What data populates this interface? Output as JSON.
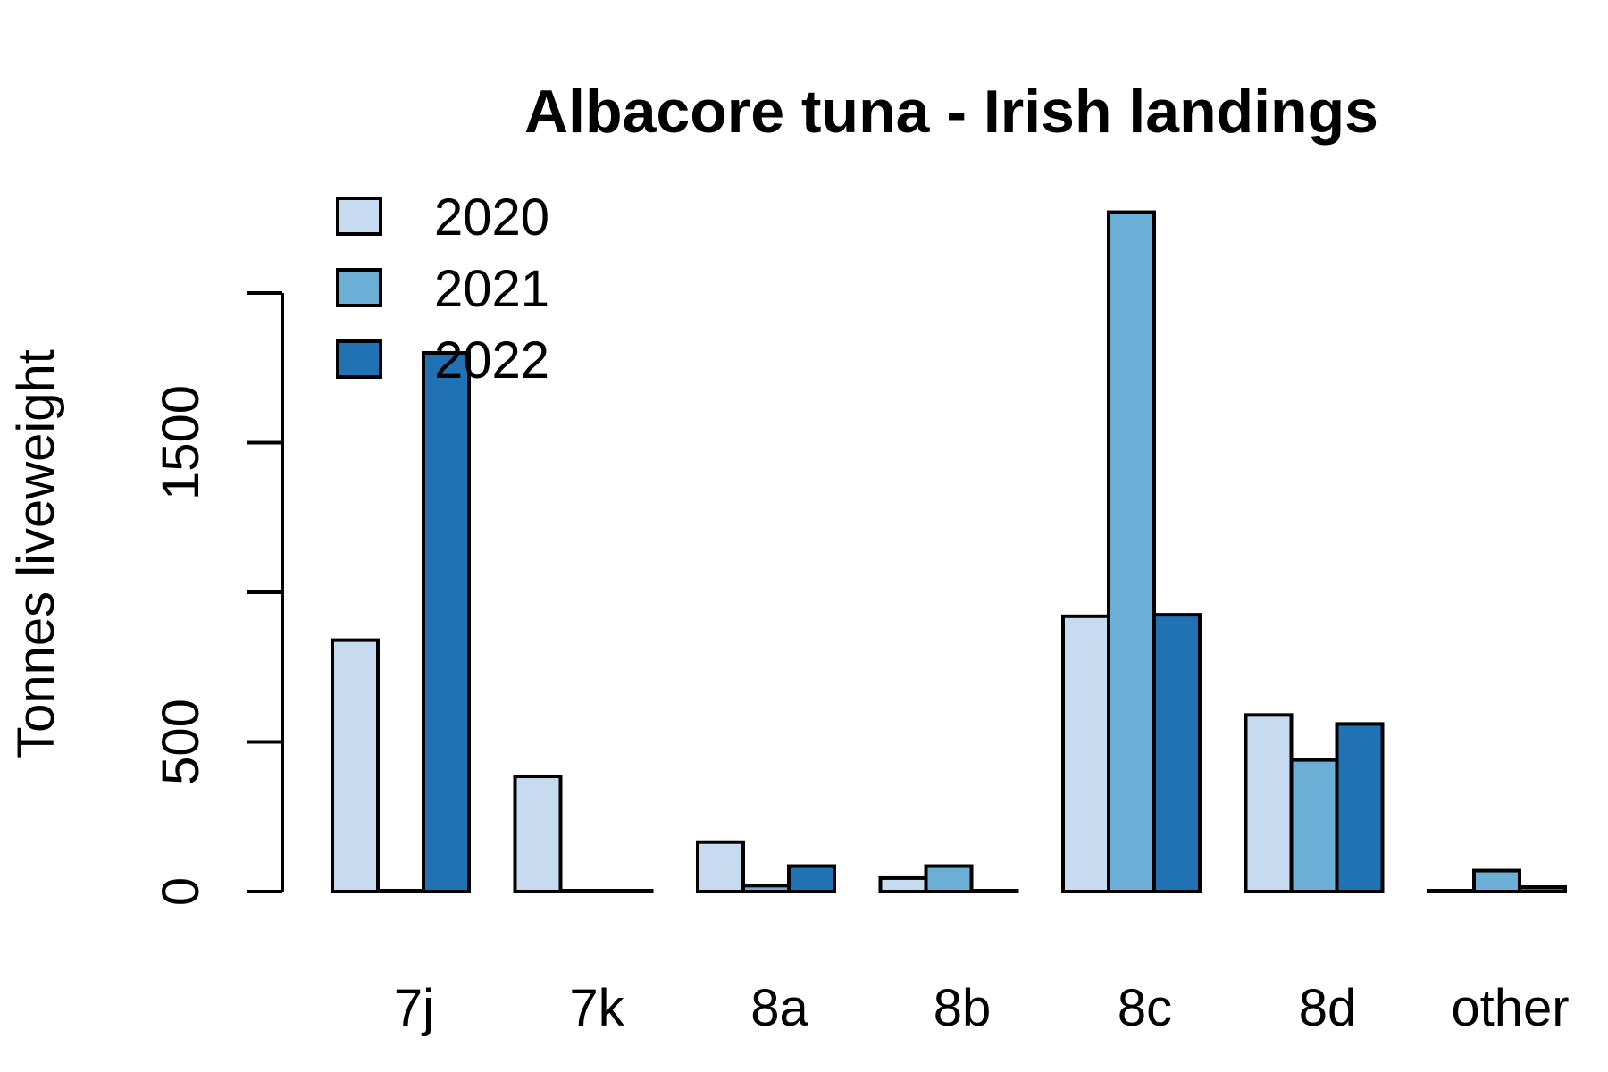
{
  "chart_data": {
    "type": "bar",
    "title": "Albacore tuna - Irish landings",
    "xlabel": "",
    "ylabel": "Tonnes liveweight",
    "categories": [
      "7j",
      "7k",
      "8a",
      "8b",
      "8c",
      "8d",
      "other"
    ],
    "series": [
      {
        "name": "2020",
        "color": "#c6dbef",
        "values": [
          840,
          385,
          165,
          45,
          920,
          590,
          0
        ]
      },
      {
        "name": "2021",
        "color": "#6baed6",
        "values": [
          3,
          0,
          20,
          85,
          2270,
          440,
          70
        ]
      },
      {
        "name": "2022",
        "color": "#2171b5",
        "values": [
          1800,
          0,
          85,
          0,
          925,
          560,
          15
        ]
      }
    ],
    "yticks": [
      0,
      500,
      1500
    ],
    "ytick_labels": [
      "0",
      "500",
      "1500"
    ],
    "ylim": [
      0,
      2300
    ],
    "grid": false,
    "legend_position": "top-left"
  }
}
